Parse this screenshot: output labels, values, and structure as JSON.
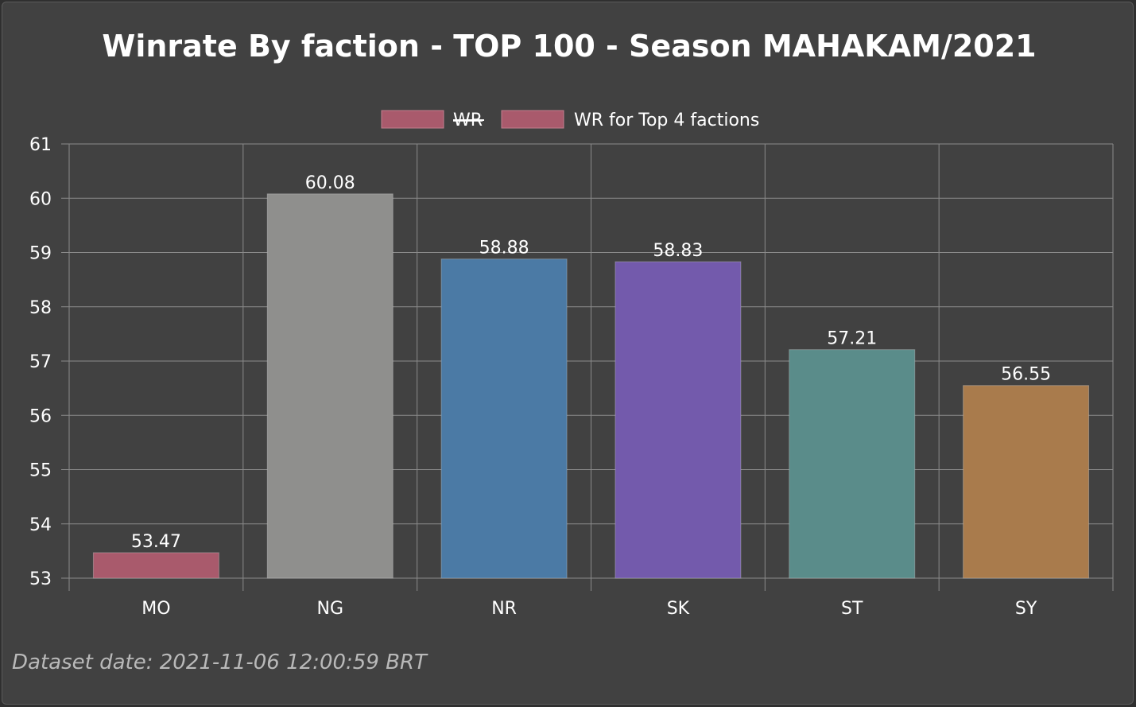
{
  "chart_data": {
    "type": "bar",
    "title": "Winrate By faction - TOP 100 - Season MAHAKAM/2021",
    "xlabel": "",
    "ylabel": "",
    "categories": [
      "MO",
      "NG",
      "NR",
      "SK",
      "ST",
      "SY"
    ],
    "series": [
      {
        "name": "WR",
        "hidden": true,
        "values": [
          53.47,
          60.08,
          58.88,
          58.83,
          57.21,
          56.55
        ]
      },
      {
        "name": "WR for Top 4 factions",
        "hidden": false,
        "values": [
          53.47,
          60.08,
          58.88,
          58.83,
          57.21,
          56.55
        ]
      }
    ],
    "value_labels": [
      "53.47",
      "60.08",
      "58.88",
      "58.83",
      "57.21",
      "56.55"
    ],
    "bar_colors": [
      "#a95a6c",
      "#8f8f8d",
      "#4b7aa5",
      "#735aac",
      "#5a8c8a",
      "#a97b4c"
    ],
    "legend_swatch_color": "#a95a6c",
    "ylim": [
      53,
      61
    ],
    "yticks": [
      53,
      54,
      55,
      56,
      57,
      58,
      59,
      60,
      61
    ],
    "grid": true,
    "legend_position": "top-center"
  },
  "footer": {
    "dataset_date": "Dataset date: 2021-11-06 12:00:59 BRT"
  }
}
